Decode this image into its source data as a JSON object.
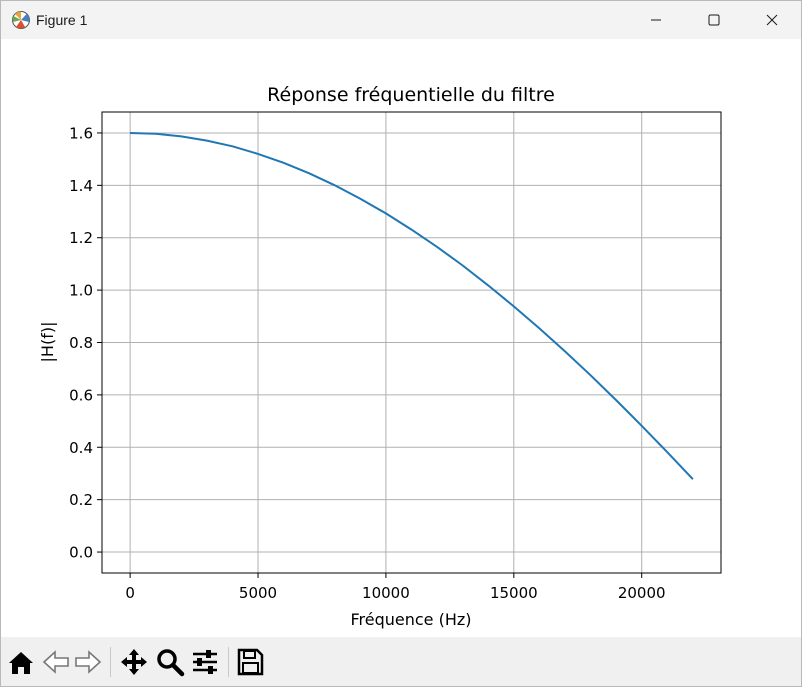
{
  "window": {
    "title": "Figure 1",
    "app_icon": "matplotlib-icon",
    "controls": [
      "minimize-icon",
      "maximize-icon",
      "close-icon"
    ]
  },
  "toolbar": {
    "buttons": [
      {
        "name": "home-button",
        "icon": "home-icon"
      },
      {
        "name": "back-button",
        "icon": "arrow-left-icon"
      },
      {
        "name": "forward-button",
        "icon": "arrow-right-icon"
      },
      {
        "name": "pan-button",
        "icon": "move-icon"
      },
      {
        "name": "zoom-button",
        "icon": "magnifier-icon"
      },
      {
        "name": "configure-subplots-button",
        "icon": "sliders-icon"
      },
      {
        "name": "save-button",
        "icon": "floppy-disk-icon"
      }
    ]
  },
  "chart_data": {
    "type": "line",
    "title": "Réponse fréquentielle du filtre",
    "xlabel": "Fréquence (Hz)",
    "ylabel": "|H(f)|",
    "xlim": [
      -1100,
      23100
    ],
    "ylim": [
      -0.08,
      1.68
    ],
    "xticks": [
      0,
      5000,
      10000,
      15000,
      20000
    ],
    "xtick_labels": [
      "0",
      "5000",
      "10000",
      "15000",
      "20000"
    ],
    "yticks": [
      0.0,
      0.2,
      0.4,
      0.6,
      0.8,
      1.0,
      1.2,
      1.4,
      1.6
    ],
    "ytick_labels": [
      "0.0",
      "0.2",
      "0.4",
      "0.6",
      "0.8",
      "1.0",
      "1.2",
      "1.4",
      "1.6"
    ],
    "grid": true,
    "line_color": "#1f77b4",
    "series": [
      {
        "x": [
          0,
          1000,
          2000,
          3000,
          4000,
          5000,
          6000,
          7000,
          8000,
          9000,
          10000,
          11000,
          12000,
          13000,
          14000,
          15000,
          16000,
          17000,
          18000,
          19000,
          20000,
          21000,
          22000
        ],
        "y": [
          1.6,
          1.597,
          1.587,
          1.571,
          1.549,
          1.52,
          1.486,
          1.446,
          1.4,
          1.349,
          1.293,
          1.231,
          1.165,
          1.094,
          1.018,
          0.938,
          0.854,
          0.766,
          0.675,
          0.58,
          0.482,
          0.381,
          0.278
        ]
      }
    ]
  }
}
